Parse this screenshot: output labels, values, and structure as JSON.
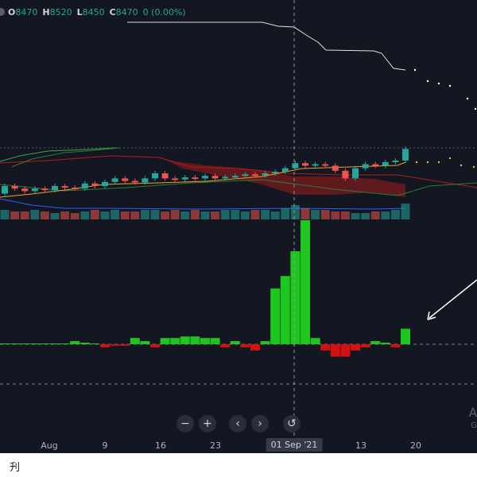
{
  "legend": {
    "open_key": "O",
    "open_value": "8470",
    "high_key": "H",
    "high_value": "8520",
    "low_key": "L",
    "low_value": "8450",
    "close_key": "C",
    "close_value": "8470",
    "change": "0 (0.00%)"
  },
  "zoom": {
    "minus": "−",
    "plus": "+",
    "prev": "‹",
    "next": "›",
    "reset": "↺"
  },
  "time_axis": {
    "labels": [
      "Aug",
      "9",
      "16",
      "23",
      "01 Sep '21",
      "13",
      "20"
    ],
    "active": "01 Sep '21"
  },
  "watermark": {
    "line1": "A",
    "line2": "G"
  },
  "footer": {
    "icon": "刋"
  },
  "colors": {
    "background": "#131722",
    "up": "#26a69a",
    "down": "#ef5350",
    "volume_up": "#26a69a",
    "volume_down": "#ef5350",
    "hist_up": "#1ec71e",
    "hist_down": "#d41111",
    "ma": "#f0a030",
    "cloud": "#8b1a1a"
  },
  "chart_data": {
    "type": "candlestick",
    "price_unit": "",
    "series_note": "",
    "candles": [
      {
        "o": 8440,
        "c": 8455
      },
      {
        "o": 8455,
        "c": 8450
      },
      {
        "o": 8450,
        "c": 8445
      },
      {
        "o": 8445,
        "c": 8450
      },
      {
        "o": 8450,
        "c": 8447
      },
      {
        "o": 8447,
        "c": 8455
      },
      {
        "o": 8455,
        "c": 8452
      },
      {
        "o": 8452,
        "c": 8450
      },
      {
        "o": 8450,
        "c": 8460
      },
      {
        "o": 8460,
        "c": 8455
      },
      {
        "o": 8455,
        "c": 8463
      },
      {
        "o": 8463,
        "c": 8470
      },
      {
        "o": 8470,
        "c": 8465
      },
      {
        "o": 8465,
        "c": 8462
      },
      {
        "o": 8462,
        "c": 8470
      },
      {
        "o": 8470,
        "c": 8480
      },
      {
        "o": 8480,
        "c": 8470
      },
      {
        "o": 8470,
        "c": 8468
      },
      {
        "o": 8468,
        "c": 8472
      },
      {
        "o": 8472,
        "c": 8470
      },
      {
        "o": 8470,
        "c": 8475
      },
      {
        "o": 8475,
        "c": 8470
      },
      {
        "o": 8470,
        "c": 8473
      },
      {
        "o": 8473,
        "c": 8475
      },
      {
        "o": 8475,
        "c": 8478
      },
      {
        "o": 8478,
        "c": 8476
      },
      {
        "o": 8476,
        "c": 8480
      },
      {
        "o": 8480,
        "c": 8483
      },
      {
        "o": 8483,
        "c": 8490
      },
      {
        "o": 8490,
        "c": 8500
      },
      {
        "o": 8500,
        "c": 8495
      },
      {
        "o": 8495,
        "c": 8498
      },
      {
        "o": 8498,
        "c": 8495
      },
      {
        "o": 8495,
        "c": 8485
      },
      {
        "o": 8485,
        "c": 8470
      },
      {
        "o": 8470,
        "c": 8490
      },
      {
        "o": 8490,
        "c": 8498
      },
      {
        "o": 8498,
        "c": 8495
      },
      {
        "o": 8495,
        "c": 8502
      },
      {
        "o": 8502,
        "c": 8505
      },
      {
        "o": 8505,
        "c": 8528
      }
    ],
    "volume": [
      6,
      5,
      5,
      6,
      5,
      4,
      5,
      4,
      5,
      6,
      5,
      6,
      5,
      5,
      6,
      6,
      5,
      6,
      5,
      6,
      5,
      5,
      6,
      6,
      5,
      6,
      6,
      5,
      7,
      9,
      7,
      6,
      6,
      5,
      5,
      4,
      4,
      5,
      5,
      6,
      10
    ],
    "histogram": [
      0,
      0,
      0,
      0,
      0,
      0,
      0,
      1,
      0.5,
      0,
      -1,
      -0.5,
      -0.5,
      2,
      1,
      -1,
      2,
      2,
      2.5,
      2.5,
      2,
      2,
      -1,
      1,
      -1,
      -2,
      1,
      18,
      22,
      30,
      40,
      2,
      -2,
      -4,
      -4,
      -2,
      -1,
      1,
      0.5,
      -1,
      5
    ]
  }
}
